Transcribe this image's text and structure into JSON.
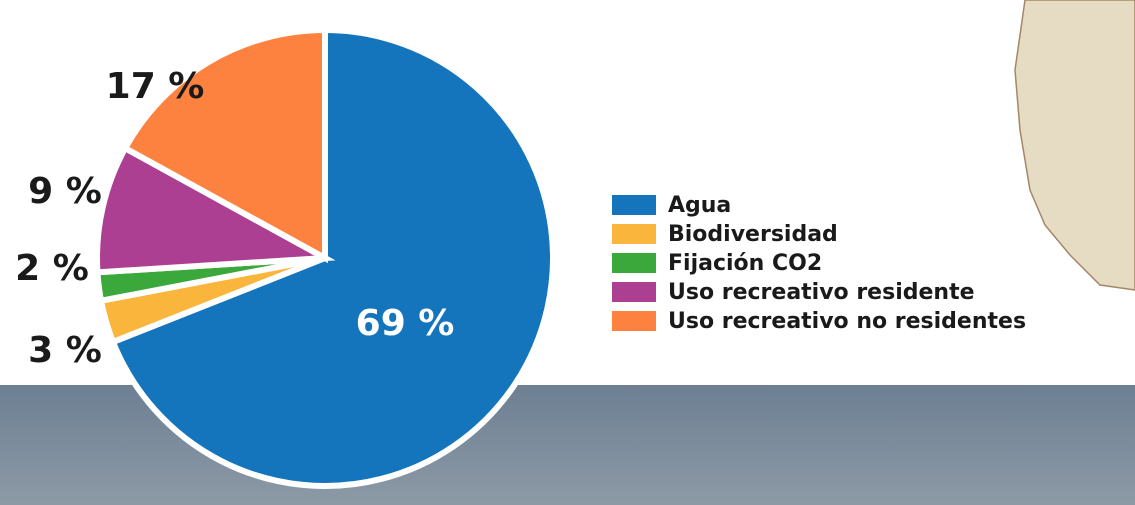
{
  "chart_data": {
    "type": "pie",
    "categories": [
      "Agua",
      "Biodiversidad",
      "Fijación CO2",
      "Uso recreativo residente",
      "Uso recreativo no residentes"
    ],
    "values": [
      69,
      3,
      2,
      9,
      17
    ],
    "value_labels": [
      "69 %",
      "3 %",
      "2 %",
      "9 %",
      "17 %"
    ],
    "colors": [
      "#1474bc",
      "#f9b53c",
      "#3aa83a",
      "#ad3f92",
      "#fd8240"
    ]
  }
}
